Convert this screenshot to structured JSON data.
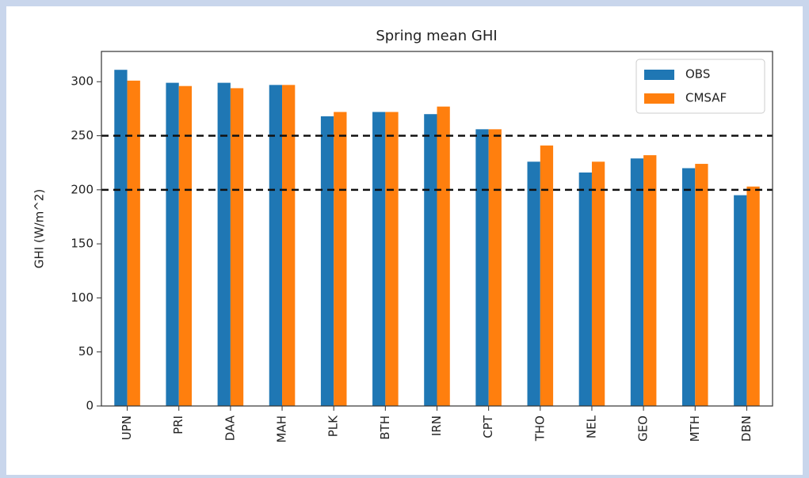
{
  "chart_data": {
    "type": "bar",
    "title": "Spring mean GHI",
    "y_label": "GHI (W/m^2)",
    "categories": [
      "UPN",
      "PRI",
      "DAA",
      "MAH",
      "PLK",
      "BTH",
      "IRN",
      "CPT",
      "THO",
      "NEL",
      "GEO",
      "MTH",
      "DBN"
    ],
    "series": [
      {
        "name": "OBS",
        "color": "#1f77b4",
        "values": [
          311,
          299,
          299,
          297,
          268,
          272,
          270,
          256,
          226,
          216,
          229,
          220,
          195
        ]
      },
      {
        "name": "CMSAF",
        "color": "#ff7f0e",
        "values": [
          301,
          296,
          294,
          297,
          272,
          272,
          277,
          256,
          241,
          226,
          232,
          224,
          203
        ]
      }
    ],
    "hlines": [
      250,
      200
    ],
    "ylim": [
      0,
      328
    ],
    "yticks": [
      0,
      50,
      100,
      150,
      200,
      250,
      300
    ],
    "legend": "upper right"
  }
}
